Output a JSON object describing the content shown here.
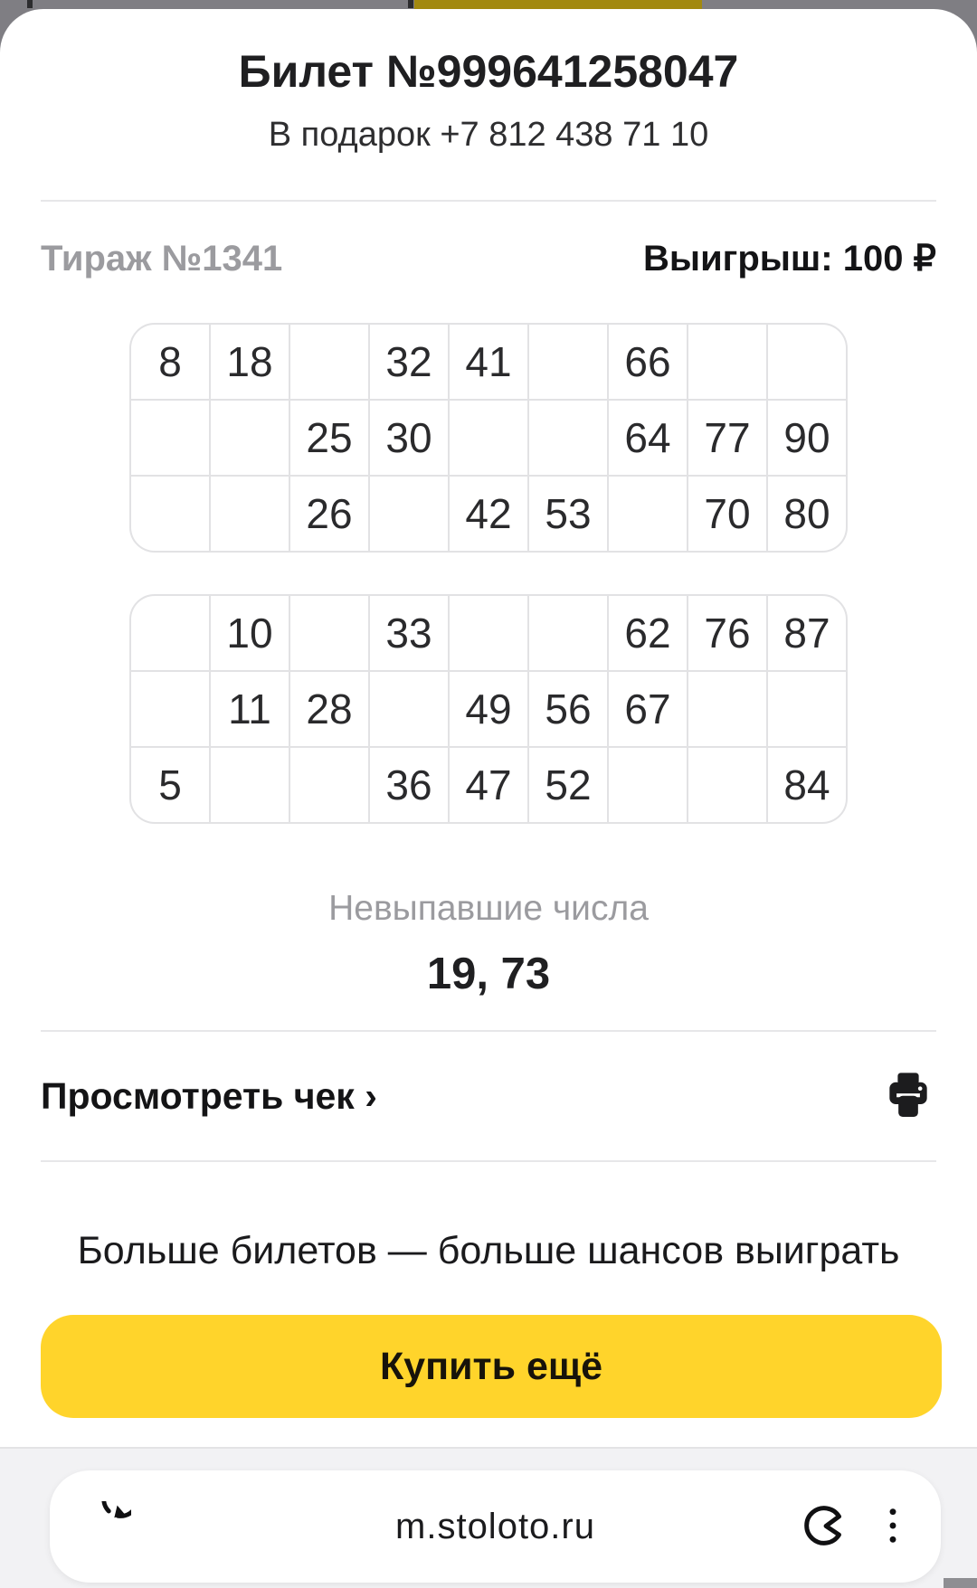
{
  "header": {
    "title": "Билет №999641258047",
    "subtitle": "В подарок +7 812 438 71 10"
  },
  "draw": {
    "label": "Тираж №1341",
    "prize": "Выигрыш: 100 ₽"
  },
  "ticket": {
    "fields": [
      {
        "rows": [
          [
            "8",
            "18",
            "",
            "32",
            "41",
            "",
            "66",
            "",
            ""
          ],
          [
            "",
            "",
            "25",
            "30",
            "",
            "",
            "64",
            "77",
            "90"
          ],
          [
            "",
            "",
            "26",
            "",
            "42",
            "53",
            "",
            "70",
            "80"
          ]
        ]
      },
      {
        "rows": [
          [
            "",
            "10",
            "",
            "33",
            "",
            "",
            "62",
            "76",
            "87"
          ],
          [
            "",
            "11",
            "28",
            "",
            "49",
            "56",
            "67",
            "",
            ""
          ],
          [
            "5",
            "",
            "",
            "36",
            "47",
            "52",
            "",
            "",
            "84"
          ]
        ]
      }
    ]
  },
  "missing": {
    "label": "Невыпавшие числа",
    "numbers": "19, 73"
  },
  "receipt": {
    "link_label": "Просмотреть чек ›",
    "printer_icon": "printer-icon"
  },
  "promo": {
    "text": "Больше билетов  —  больше шансов выиграть",
    "buy_button_label": "Купить ещё"
  },
  "browser": {
    "url": "m.stoloto.ru",
    "reload_icon": "reload-icon",
    "protect_icon": "protect-icon",
    "menu_icon": "kebab-menu-icon"
  },
  "colors": {
    "accent_yellow": "#ffd42b",
    "strip_yellow": "#a2890f",
    "strip_gray": "#7f7e83",
    "divider_gray": "#e7e7e9",
    "muted_text": "#9b9b9f"
  }
}
